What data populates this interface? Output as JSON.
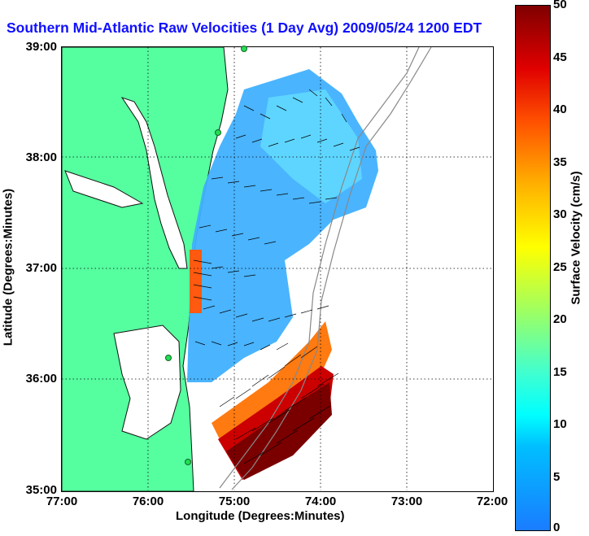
{
  "title": "Southern Mid-Atlantic Raw Velocities (1 Day Avg) 2009/05/24 1200 EDT",
  "axes": {
    "xlabel": "Longitude (Degrees:Minutes)",
    "ylabel": "Latitude (Degrees:Minutes)",
    "xticks": [
      "77:00",
      "76:00",
      "75:00",
      "74:00",
      "73:00",
      "72:00"
    ],
    "yticks": [
      "39:00",
      "38:00",
      "37:00",
      "36:00",
      "35:00"
    ]
  },
  "colorbar": {
    "label": "Surface Velocity (cm/s)",
    "ticks": [
      "50",
      "45",
      "40",
      "35",
      "30",
      "25",
      "20",
      "15",
      "10",
      "5",
      "0"
    ],
    "range": [
      0,
      50
    ]
  },
  "colors": {
    "land": "#55ff9f",
    "title": "#1010ff",
    "slow": "#1a7cff",
    "medium": "#40c8ff",
    "fast": "#800000"
  }
}
